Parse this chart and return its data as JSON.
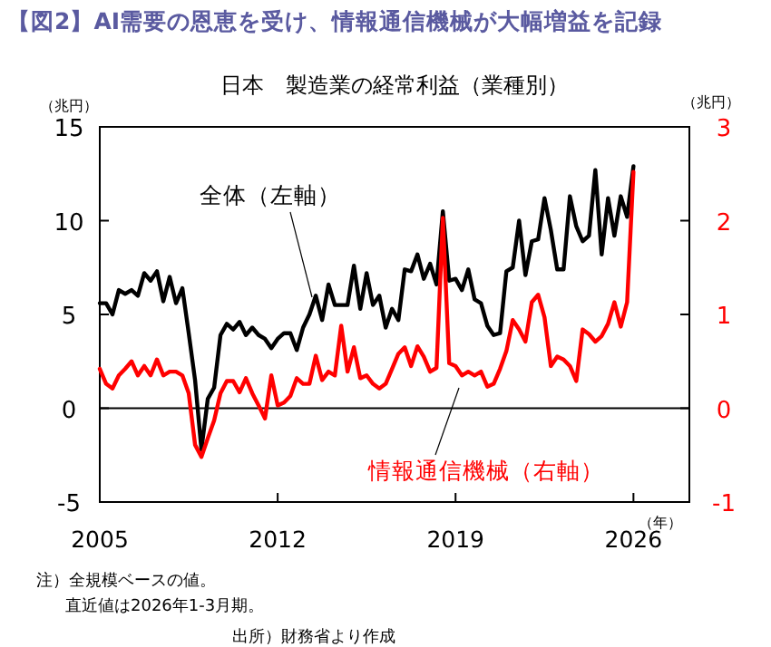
{
  "chart_data": {
    "type": "line",
    "title": "【図2】AI需要の恩恵を受け、情報通信機械が大幅増益を記録",
    "subtitle": "日本　製造業の経常利益（業種別）",
    "ylabel": "（兆円）",
    "y2label": "（兆円）",
    "xlabel": "（年）",
    "annotations": [
      "注）全規模ベースの値。",
      "直近値は2026年1-3月期。",
      "出所）財務省より作成"
    ],
    "x": [
      2005.0,
      2005.25,
      2005.5,
      2005.75,
      2006.0,
      2006.25,
      2006.5,
      2006.75,
      2007.0,
      2007.25,
      2007.5,
      2007.75,
      2008.0,
      2008.25,
      2008.5,
      2008.75,
      2009.0,
      2009.25,
      2009.5,
      2009.75,
      2010.0,
      2010.25,
      2010.5,
      2010.75,
      2011.0,
      2011.25,
      2011.5,
      2011.75,
      2012.0,
      2012.25,
      2012.5,
      2012.75,
      2013.0,
      2013.25,
      2013.5,
      2013.75,
      2014.0,
      2014.25,
      2014.5,
      2014.75,
      2015.0,
      2015.25,
      2015.5,
      2015.75,
      2016.0,
      2016.25,
      2016.5,
      2016.75,
      2017.0,
      2017.25,
      2017.5,
      2017.75,
      2018.0,
      2018.25,
      2018.5,
      2018.75,
      2019.0,
      2019.25,
      2019.5,
      2019.75,
      2020.0,
      2020.25,
      2020.5,
      2020.75,
      2021.0,
      2021.25,
      2021.5,
      2021.75,
      2022.0,
      2022.25,
      2022.5,
      2022.75,
      2023.0,
      2023.25,
      2023.5,
      2023.75,
      2024.0,
      2024.25,
      2024.5,
      2024.75,
      2025.0,
      2025.25,
      2025.5,
      2025.75,
      2026.0
    ],
    "series": [
      {
        "name": "全体（左軸）",
        "color": "#000000",
        "values": [
          5.6,
          5.6,
          5.0,
          6.3,
          6.1,
          6.3,
          6.0,
          7.2,
          6.8,
          7.3,
          5.7,
          7.0,
          5.6,
          6.4,
          4.0,
          1.5,
          -2.2,
          0.5,
          1.1,
          3.9,
          4.5,
          4.2,
          4.6,
          3.9,
          4.3,
          3.9,
          3.7,
          3.2,
          3.7,
          4.0,
          4.0,
          3.1,
          4.3,
          5.0,
          6.0,
          4.7,
          6.6,
          5.5,
          5.5,
          5.5,
          7.6,
          5.3,
          7.2,
          5.5,
          6.0,
          4.3,
          5.3,
          4.7,
          7.4,
          7.3,
          8.2,
          6.9,
          7.7,
          6.6,
          10.5,
          6.8,
          6.9,
          6.3,
          7.4,
          5.8,
          5.6,
          4.4,
          3.9,
          4.0,
          7.3,
          7.5,
          10.0,
          7.1,
          8.9,
          9.0,
          11.2,
          9.5,
          7.4,
          7.4,
          11.3,
          9.7,
          8.9,
          9.2,
          12.7,
          8.2,
          11.2,
          9.2,
          11.3,
          10.2,
          12.9
        ]
      },
      {
        "name": "情報通信機械（右軸）",
        "color": "#ff0000",
        "axis": "y2",
        "values": [
          0.42,
          0.26,
          0.21,
          0.35,
          0.42,
          0.5,
          0.35,
          0.45,
          0.35,
          0.52,
          0.35,
          0.39,
          0.39,
          0.35,
          0.16,
          -0.39,
          -0.52,
          -0.32,
          -0.13,
          0.16,
          0.29,
          0.29,
          0.17,
          0.32,
          0.16,
          0.03,
          -0.11,
          0.35,
          0.03,
          0.06,
          0.13,
          0.32,
          0.26,
          0.26,
          0.56,
          0.3,
          0.39,
          0.35,
          0.88,
          0.39,
          0.65,
          0.32,
          0.35,
          0.26,
          0.21,
          0.26,
          0.42,
          0.58,
          0.65,
          0.45,
          0.66,
          0.55,
          0.39,
          0.43,
          2.03,
          0.48,
          0.45,
          0.35,
          0.39,
          0.35,
          0.39,
          0.23,
          0.26,
          0.42,
          0.61,
          0.94,
          0.84,
          0.71,
          1.13,
          1.21,
          0.97,
          0.45,
          0.55,
          0.52,
          0.45,
          0.29,
          0.84,
          0.79,
          0.71,
          0.77,
          0.9,
          1.13,
          0.87,
          1.13,
          2.52
        ]
      }
    ],
    "xlim": [
      2005,
      2028.2
    ],
    "xticks": [
      2005,
      2012,
      2019,
      2026
    ],
    "ylim": [
      -5,
      15
    ],
    "yticks": [
      -5,
      0,
      5,
      10,
      15
    ],
    "y2lim": [
      -1,
      3
    ],
    "y2ticks": [
      -1,
      0,
      1,
      2,
      3
    ],
    "ref_lines": [
      {
        "axis": "y",
        "value": 0,
        "color": "#000000"
      }
    ],
    "grid": false,
    "legend": false
  }
}
